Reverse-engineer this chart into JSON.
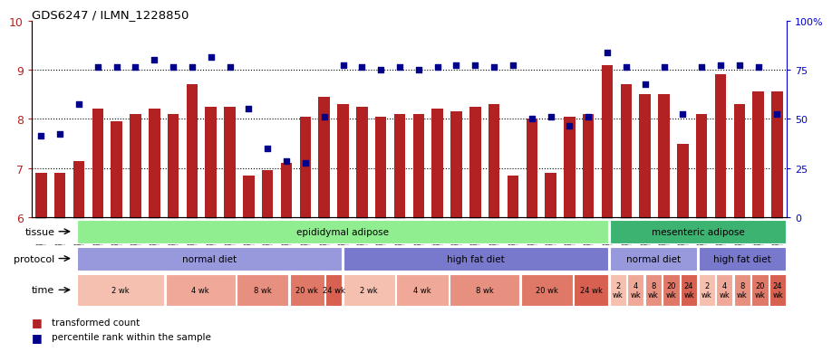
{
  "title": "GDS6247 / ILMN_1228850",
  "samples": [
    "GSM971546",
    "GSM971547",
    "GSM971548",
    "GSM971549",
    "GSM971550",
    "GSM971551",
    "GSM971552",
    "GSM971553",
    "GSM971554",
    "GSM971555",
    "GSM971556",
    "GSM971557",
    "GSM971558",
    "GSM971559",
    "GSM971560",
    "GSM971561",
    "GSM971562",
    "GSM971563",
    "GSM971564",
    "GSM971565",
    "GSM971566",
    "GSM971567",
    "GSM971568",
    "GSM971569",
    "GSM971570",
    "GSM971571",
    "GSM971572",
    "GSM971573",
    "GSM971574",
    "GSM971575",
    "GSM971576",
    "GSM971577",
    "GSM971578",
    "GSM971579",
    "GSM971580",
    "GSM971581",
    "GSM971582",
    "GSM971583",
    "GSM971584",
    "GSM971585"
  ],
  "bar_values": [
    6.9,
    6.9,
    7.15,
    8.2,
    7.95,
    8.1,
    8.2,
    8.1,
    8.7,
    8.25,
    8.25,
    6.85,
    6.95,
    7.1,
    8.05,
    8.45,
    8.3,
    8.25,
    8.05,
    8.1,
    8.1,
    8.2,
    8.15,
    8.25,
    8.3,
    6.85,
    8.0,
    6.9,
    8.05,
    8.1,
    9.1,
    8.7,
    8.5,
    8.5,
    7.5,
    8.1,
    8.9,
    8.3,
    8.55,
    8.55
  ],
  "dot_values": [
    7.65,
    7.7,
    8.3,
    9.05,
    9.05,
    9.05,
    9.2,
    9.05,
    9.05,
    9.25,
    9.05,
    8.2,
    7.4,
    7.15,
    7.1,
    8.05,
    9.1,
    9.05,
    9.0,
    9.05,
    9.0,
    9.05,
    9.1,
    9.1,
    9.05,
    9.1,
    8.0,
    8.05,
    7.85,
    8.05,
    9.35,
    9.05,
    8.7,
    9.05,
    8.1,
    9.05,
    9.1,
    9.1,
    9.05,
    8.1
  ],
  "ylim": [
    6,
    10
  ],
  "yticks_left": [
    6,
    7,
    8,
    9,
    10
  ],
  "bar_color": "#b22222",
  "dot_color": "#00008b",
  "tick_label_bg": "#c8c8c8",
  "tissue_row": [
    {
      "label": "epididymal adipose",
      "start": 0,
      "end": 30,
      "color": "#90ee90"
    },
    {
      "label": "mesenteric adipose",
      "start": 30,
      "end": 40,
      "color": "#3cb371"
    }
  ],
  "protocol_row": [
    {
      "label": "normal diet",
      "start": 0,
      "end": 15,
      "color": "#9898dd"
    },
    {
      "label": "high fat diet",
      "start": 15,
      "end": 30,
      "color": "#7878cc"
    },
    {
      "label": "normal diet",
      "start": 30,
      "end": 35,
      "color": "#9898dd"
    },
    {
      "label": "high fat diet",
      "start": 35,
      "end": 40,
      "color": "#7878cc"
    }
  ],
  "time_row": [
    {
      "label": "2 wk",
      "start": 0,
      "end": 5,
      "color": "#f5c0b0"
    },
    {
      "label": "4 wk",
      "start": 5,
      "end": 9,
      "color": "#f0a898"
    },
    {
      "label": "8 wk",
      "start": 9,
      "end": 12,
      "color": "#e89080"
    },
    {
      "label": "20 wk",
      "start": 12,
      "end": 14,
      "color": "#e07868"
    },
    {
      "label": "24 wk",
      "start": 14,
      "end": 15,
      "color": "#d86050"
    },
    {
      "label": "2 wk",
      "start": 15,
      "end": 18,
      "color": "#f5c0b0"
    },
    {
      "label": "4 wk",
      "start": 18,
      "end": 21,
      "color": "#f0a898"
    },
    {
      "label": "8 wk",
      "start": 21,
      "end": 25,
      "color": "#e89080"
    },
    {
      "label": "20 wk",
      "start": 25,
      "end": 28,
      "color": "#e07868"
    },
    {
      "label": "24 wk",
      "start": 28,
      "end": 30,
      "color": "#d86050"
    },
    {
      "label": "2\nwk",
      "start": 30,
      "end": 31,
      "color": "#f5c0b0"
    },
    {
      "label": "4\nwk",
      "start": 31,
      "end": 32,
      "color": "#f0a898"
    },
    {
      "label": "8\nwk",
      "start": 32,
      "end": 33,
      "color": "#e89080"
    },
    {
      "label": "20\nwk",
      "start": 33,
      "end": 34,
      "color": "#e07868"
    },
    {
      "label": "24\nwk",
      "start": 34,
      "end": 35,
      "color": "#d86050"
    },
    {
      "label": "2\nwk",
      "start": 35,
      "end": 36,
      "color": "#f5c0b0"
    },
    {
      "label": "4\nwk",
      "start": 36,
      "end": 37,
      "color": "#f0a898"
    },
    {
      "label": "8\nwk",
      "start": 37,
      "end": 38,
      "color": "#e89080"
    },
    {
      "label": "20\nwk",
      "start": 38,
      "end": 39,
      "color": "#e07868"
    },
    {
      "label": "24\nwk",
      "start": 39,
      "end": 40,
      "color": "#d86050"
    }
  ]
}
